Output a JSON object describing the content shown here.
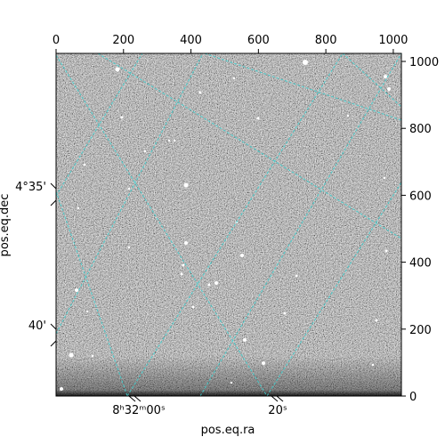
{
  "figure": {
    "xlabel": "pos.eq.ra",
    "ylabel": "pos.eq.dec",
    "pixel_x_ticks": [
      "0",
      "200",
      "400",
      "600",
      "800",
      "1000"
    ],
    "pixel_y_ticks": [
      "0",
      "200",
      "400",
      "600",
      "800",
      "1000"
    ],
    "ra_ticks": [
      "8ʰ32ᵐ00ˢ",
      "20ˢ"
    ],
    "dec_ticks": [
      "4°35'",
      "40'"
    ],
    "grid_color": "#3fd0d0",
    "frame_color": "#000000",
    "image_style": "grayscale astronomical noise field with scattered bright stars"
  }
}
